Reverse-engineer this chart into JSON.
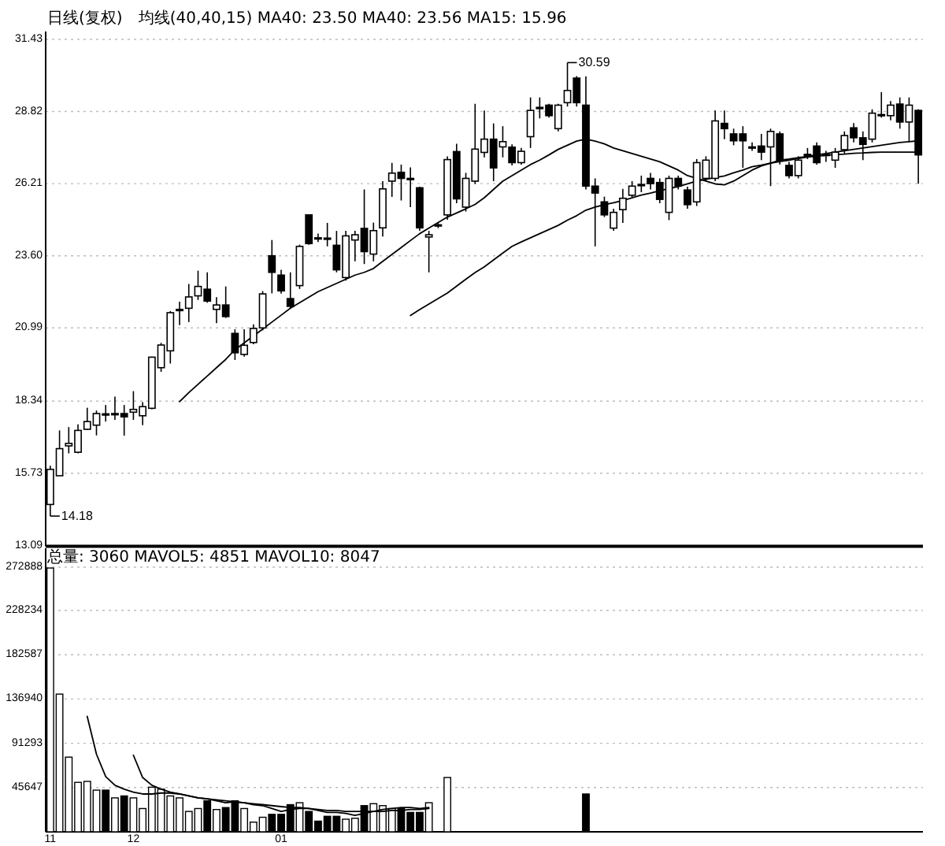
{
  "chart_data": [
    {
      "type": "candlestick",
      "title": "日线(复权)",
      "subtitle": "均线(40,40,15) MA40: 23.50 MA40: 23.56 MA15: 15.96",
      "categories": [
        null,
        null,
        null,
        null,
        null,
        null,
        null,
        null,
        null,
        null,
        null,
        null,
        null,
        null,
        null,
        null,
        null,
        null,
        null,
        null,
        null,
        null,
        null,
        null,
        null,
        null,
        null,
        null,
        null,
        null,
        null,
        null,
        null,
        null,
        null,
        null,
        null,
        null,
        null,
        null,
        null,
        null,
        null,
        null,
        null,
        null,
        null,
        null,
        null,
        null,
        null,
        null,
        null,
        null,
        null,
        null,
        null,
        null,
        null,
        null,
        null,
        null,
        null,
        null,
        null,
        null,
        null,
        null,
        null,
        null,
        null,
        null,
        null,
        null,
        null,
        null,
        null,
        null,
        null,
        null,
        null,
        null,
        null,
        null,
        null,
        null,
        null,
        null,
        null,
        null,
        null,
        null,
        null,
        null,
        null
      ],
      "ohlc": [
        [
          14.6,
          16.0,
          14.18,
          15.87
        ],
        [
          15.64,
          17.28,
          15.64,
          16.62
        ],
        [
          16.72,
          17.4,
          16.45,
          16.81
        ],
        [
          16.49,
          17.5,
          16.45,
          17.28
        ],
        [
          17.32,
          18.1,
          17.3,
          17.6
        ],
        [
          17.47,
          18.0,
          17.1,
          17.89
        ],
        [
          17.88,
          18.2,
          17.6,
          17.85
        ],
        [
          17.87,
          18.5,
          17.66,
          17.89
        ],
        [
          17.89,
          18.2,
          17.09,
          17.77
        ],
        [
          17.94,
          18.7,
          17.66,
          18.04
        ],
        [
          17.81,
          18.3,
          17.47,
          18.14
        ],
        [
          18.08,
          19.95,
          18.05,
          19.93
        ],
        [
          19.55,
          20.45,
          19.4,
          20.37
        ],
        [
          20.16,
          21.6,
          19.7,
          21.54
        ],
        [
          21.62,
          21.94,
          21.09,
          21.66
        ],
        [
          21.7,
          22.58,
          21.2,
          22.11
        ],
        [
          22.15,
          23.06,
          22.0,
          22.49
        ],
        [
          22.39,
          23.0,
          21.9,
          21.96
        ],
        [
          21.66,
          22.1,
          21.16,
          21.82
        ],
        [
          21.82,
          22.49,
          21.35,
          21.4
        ],
        [
          20.79,
          20.94,
          19.83,
          20.09
        ],
        [
          20.03,
          20.94,
          19.95,
          20.36
        ],
        [
          20.46,
          21.12,
          20.4,
          20.97
        ],
        [
          20.99,
          22.32,
          20.9,
          22.22
        ],
        [
          23.6,
          24.17,
          22.24,
          23.0
        ],
        [
          22.9,
          23.09,
          22.23,
          22.33
        ],
        [
          22.05,
          23.0,
          21.7,
          21.77
        ],
        [
          22.52,
          24.0,
          22.4,
          23.94
        ],
        [
          25.08,
          25.1,
          24.0,
          24.04
        ],
        [
          24.25,
          24.4,
          24.1,
          24.22
        ],
        [
          24.24,
          24.79,
          23.94,
          24.2
        ],
        [
          23.98,
          24.5,
          23.0,
          23.09
        ],
        [
          22.81,
          24.5,
          22.7,
          24.32
        ],
        [
          24.17,
          24.5,
          23.4,
          24.36
        ],
        [
          24.59,
          26.0,
          23.3,
          23.75
        ],
        [
          23.66,
          24.8,
          23.4,
          24.51
        ],
        [
          24.61,
          26.3,
          24.3,
          26.02
        ],
        [
          26.3,
          26.96,
          25.73,
          26.59
        ],
        [
          26.62,
          26.9,
          25.6,
          26.4
        ],
        [
          26.4,
          26.8,
          25.36,
          26.38
        ],
        [
          26.06,
          26.1,
          24.5,
          24.61
        ],
        [
          24.28,
          24.5,
          23.0,
          24.36
        ],
        [
          24.7,
          24.8,
          24.6,
          24.72
        ],
        [
          25.08,
          27.2,
          24.9,
          27.08
        ],
        [
          27.37,
          27.65,
          25.5,
          25.66
        ],
        [
          25.36,
          26.6,
          25.2,
          26.4
        ],
        [
          26.3,
          29.1,
          26.2,
          27.46
        ],
        [
          27.34,
          28.86,
          27.16,
          27.82
        ],
        [
          27.82,
          28.39,
          26.3,
          26.78
        ],
        [
          27.54,
          28.29,
          27.16,
          27.73
        ],
        [
          27.53,
          27.63,
          26.87,
          26.97
        ],
        [
          26.97,
          27.5,
          26.9,
          27.38
        ],
        [
          27.91,
          29.33,
          27.5,
          28.86
        ],
        [
          28.95,
          29.33,
          28.57,
          28.97
        ],
        [
          29.05,
          29.1,
          28.6,
          28.67
        ],
        [
          28.2,
          29.1,
          28.1,
          29.05
        ],
        [
          29.14,
          30.59,
          29.0,
          29.58
        ],
        [
          30.03,
          30.1,
          29.0,
          29.14
        ],
        [
          29.05,
          30.09,
          26.0,
          26.12
        ],
        [
          26.12,
          26.4,
          23.94,
          25.87
        ],
        [
          25.55,
          25.74,
          25.0,
          25.08
        ],
        [
          24.6,
          25.3,
          24.5,
          25.17
        ],
        [
          25.27,
          26.02,
          24.79,
          25.68
        ],
        [
          25.79,
          26.3,
          25.7,
          26.12
        ],
        [
          26.18,
          26.5,
          25.9,
          26.17
        ],
        [
          26.4,
          26.6,
          26.0,
          26.21
        ],
        [
          26.25,
          26.4,
          25.5,
          25.64
        ],
        [
          25.17,
          26.5,
          24.89,
          26.4
        ],
        [
          26.4,
          26.5,
          26.0,
          26.12
        ],
        [
          25.98,
          26.1,
          25.3,
          25.45
        ],
        [
          25.55,
          27.1,
          25.4,
          26.97
        ],
        [
          26.4,
          27.2,
          26.3,
          27.06
        ],
        [
          26.4,
          28.86,
          26.3,
          28.48
        ],
        [
          28.39,
          28.86,
          27.82,
          28.2
        ],
        [
          28.01,
          28.2,
          27.6,
          27.76
        ],
        [
          28.01,
          28.29,
          26.78,
          27.76
        ],
        [
          27.54,
          27.7,
          27.4,
          27.52
        ],
        [
          27.57,
          28.01,
          27.06,
          27.35
        ],
        [
          27.54,
          28.2,
          26.12,
          28.1
        ],
        [
          28.01,
          28.1,
          26.9,
          27.06
        ],
        [
          26.87,
          27.0,
          26.4,
          26.5
        ],
        [
          26.5,
          27.2,
          26.4,
          27.06
        ],
        [
          27.25,
          27.5,
          27.1,
          27.27
        ],
        [
          27.57,
          27.7,
          26.9,
          26.97
        ],
        [
          27.27,
          27.4,
          27.0,
          27.25
        ],
        [
          27.06,
          27.5,
          26.78,
          27.35
        ],
        [
          27.44,
          28.1,
          27.3,
          27.95
        ],
        [
          28.23,
          28.4,
          27.7,
          27.87
        ],
        [
          27.87,
          28.1,
          27.06,
          27.63
        ],
        [
          27.82,
          28.9,
          27.7,
          28.76
        ],
        [
          28.68,
          29.52,
          28.6,
          28.71
        ],
        [
          28.67,
          29.2,
          28.5,
          29.05
        ],
        [
          29.09,
          29.33,
          28.2,
          28.44
        ],
        [
          28.44,
          29.33,
          27.72,
          29.05
        ],
        [
          28.86,
          28.9,
          26.21,
          27.25
        ]
      ],
      "color": "#000000",
      "series": [
        {
          "type": "line",
          "color": "#000000",
          "values": [
            null,
            null,
            null,
            null,
            null,
            null,
            null,
            null,
            null,
            null,
            null,
            null,
            null,
            null,
            18.32,
            18.65,
            18.95,
            19.25,
            19.55,
            19.85,
            20.2,
            20.45,
            20.7,
            20.95,
            21.2,
            21.45,
            21.7,
            21.9,
            22.1,
            22.3,
            22.45,
            22.6,
            22.75,
            22.9,
            23.0,
            23.14,
            23.4,
            23.65,
            23.9,
            24.15,
            24.4,
            24.6,
            24.8,
            25.0,
            25.15,
            25.3,
            25.46,
            25.7,
            26.0,
            26.3,
            26.5,
            26.7,
            26.9,
            27.06,
            27.25,
            27.45,
            27.6,
            27.75,
            27.82,
            27.75,
            27.65,
            27.5,
            27.4,
            27.3,
            27.2,
            27.1,
            27.0,
            26.85,
            26.7,
            26.5,
            26.4,
            26.3,
            26.2,
            26.17,
            26.3,
            26.5,
            26.7,
            26.85,
            26.95,
            27.06,
            27.1,
            27.15,
            27.2,
            27.25,
            27.3,
            27.35,
            27.4,
            27.45,
            27.5,
            27.55,
            27.6,
            27.65,
            27.7,
            27.73,
            27.76
          ]
        },
        {
          "type": "line",
          "color": "#000000",
          "values": [
            null,
            null,
            null,
            null,
            null,
            null,
            null,
            null,
            null,
            null,
            null,
            null,
            null,
            null,
            null,
            null,
            null,
            null,
            null,
            null,
            null,
            null,
            null,
            null,
            null,
            null,
            null,
            null,
            null,
            null,
            null,
            null,
            null,
            null,
            null,
            null,
            null,
            null,
            null,
            21.44,
            21.65,
            21.85,
            22.05,
            22.25,
            22.5,
            22.75,
            22.99,
            23.2,
            23.45,
            23.7,
            23.94,
            24.1,
            24.25,
            24.4,
            24.55,
            24.7,
            24.89,
            25.05,
            25.25,
            25.36,
            25.45,
            25.52,
            25.6,
            25.7,
            25.8,
            25.87,
            25.95,
            26.03,
            26.1,
            26.2,
            26.3,
            26.37,
            26.43,
            26.49,
            26.6,
            26.7,
            26.82,
            26.88,
            26.95,
            27.01,
            27.06,
            27.12,
            27.17,
            27.2,
            27.24,
            27.26,
            27.28,
            27.31,
            27.32,
            27.34,
            27.35,
            27.35,
            27.35,
            27.35,
            27.35
          ]
        }
      ],
      "ylim": [
        13.09,
        31.43
      ],
      "yticks": [
        13.09,
        15.73,
        18.34,
        20.99,
        {
          "value": 23.6,
          "label": "23.60"
        },
        26.21,
        28.82,
        31.43
      ],
      "grid": "y",
      "annotations": [
        "30.59",
        "14.18"
      ]
    },
    {
      "type": "bar",
      "title": "总量: 3060 MAVOL5: 4851 MAVOL10: 8047",
      "categories": [
        "11",
        null,
        null,
        null,
        null,
        null,
        null,
        null,
        null,
        "12",
        null,
        null,
        null,
        null,
        null,
        null,
        null,
        null,
        null,
        null,
        null,
        null,
        null,
        null,
        null,
        "01",
        null,
        null,
        null,
        null,
        null,
        null,
        null,
        null,
        null,
        null,
        null,
        null,
        null,
        null,
        null,
        null,
        null,
        null,
        null,
        null,
        null,
        null,
        null,
        null,
        null,
        null,
        null,
        null,
        null,
        null,
        null,
        null,
        null,
        null,
        null,
        null,
        null,
        null,
        null,
        null,
        null,
        null,
        null,
        null,
        null,
        null,
        null,
        null,
        null,
        null,
        null,
        null,
        null,
        null,
        null,
        null,
        null,
        null,
        null,
        null,
        null,
        null,
        null,
        null,
        null,
        null,
        null,
        null,
        null
      ],
      "series": [
        {
          "color": "#000000",
          "colors": [
            "#ffffff",
            "#ffffff",
            "#ffffff",
            "#ffffff",
            "#ffffff",
            "#ffffff",
            "#000000",
            "#ffffff",
            "#000000",
            "#ffffff",
            "#ffffff",
            "#ffffff",
            "#ffffff",
            "#ffffff",
            "#ffffff",
            "#ffffff",
            "#ffffff",
            "#000000",
            "#ffffff",
            "#000000",
            "#000000",
            "#ffffff",
            "#ffffff",
            "#ffffff",
            "#000000",
            "#000000",
            "#000000",
            "#ffffff",
            "#000000",
            "#000000",
            "#000000",
            "#000000",
            "#ffffff",
            "#ffffff",
            "#000000",
            "#ffffff",
            "#ffffff",
            "#ffffff",
            "#000000",
            "#000000",
            "#000000",
            "#ffffff",
            null,
            "#ffffff",
            null,
            null,
            null,
            null,
            null,
            null,
            null,
            null,
            null,
            null,
            null,
            null,
            null,
            null,
            "#000000",
            null,
            null,
            null,
            null,
            null,
            null,
            null,
            null,
            null,
            null,
            null,
            null,
            null,
            null,
            null,
            null,
            null,
            null,
            null,
            null,
            null,
            null,
            null,
            null,
            null,
            null,
            null,
            null,
            null,
            null,
            null,
            null,
            null,
            null,
            null,
            null
          ],
          "values": [
            272000,
            142000,
            77000,
            51000,
            52000,
            43000,
            43000,
            35000,
            37000,
            35000,
            24000,
            46000,
            44000,
            37000,
            35000,
            21000,
            24000,
            32000,
            23000,
            25000,
            32000,
            24000,
            10000,
            15000,
            18000,
            18000,
            28000,
            30000,
            21000,
            11000,
            16000,
            16000,
            13000,
            14000,
            27000,
            29000,
            27000,
            24000,
            24000,
            20000,
            20000,
            30000,
            null,
            56000,
            null,
            null,
            null,
            null,
            null,
            null,
            null,
            null,
            null,
            null,
            null,
            null,
            null,
            null,
            39000,
            null,
            null,
            null,
            null,
            null,
            null,
            null,
            null,
            null,
            null,
            null,
            null,
            null,
            null,
            null,
            null,
            null,
            null,
            null,
            null,
            null,
            null,
            null,
            null,
            null,
            null,
            null,
            null,
            null,
            null,
            null,
            null,
            null,
            null,
            null,
            null
          ]
        },
        {
          "type": "line",
          "color": "#000000",
          "values": [
            null,
            null,
            null,
            null,
            119000,
            80000,
            57000,
            48000,
            44000,
            41000,
            39000,
            39000,
            40000,
            40000,
            39000,
            37000,
            35000,
            34000,
            32000,
            30000,
            31000,
            30000,
            28000,
            27000,
            24000,
            21000,
            23000,
            24000,
            24000,
            22000,
            20000,
            20000,
            19000,
            17000,
            19000,
            21000,
            23000,
            24000,
            25000,
            25000,
            24000,
            25000,
            null,
            null,
            null,
            null,
            null,
            null,
            null,
            null,
            null,
            null,
            null,
            null,
            null,
            null,
            null,
            null,
            null,
            null,
            null,
            null,
            null,
            null,
            null,
            null,
            null,
            null,
            null,
            null,
            null,
            null,
            null,
            null,
            null,
            null,
            null,
            null,
            null,
            null,
            null,
            null,
            null,
            null,
            null,
            null,
            null,
            null,
            null,
            null,
            null,
            null,
            null,
            null,
            null
          ]
        },
        {
          "type": "line",
          "color": "#000000",
          "values": [
            null,
            null,
            null,
            null,
            null,
            null,
            null,
            null,
            null,
            79000,
            56000,
            48000,
            44000,
            41000,
            39000,
            37000,
            35000,
            34000,
            33000,
            32000,
            31000,
            30000,
            29000,
            28000,
            27000,
            26000,
            25000,
            25000,
            24000,
            23000,
            22000,
            22000,
            21000,
            21000,
            21000,
            21000,
            21000,
            22000,
            22000,
            23000,
            23000,
            24000,
            null,
            null,
            null,
            null,
            null,
            null,
            null,
            null,
            null,
            null,
            null,
            null,
            null,
            null,
            null,
            null,
            null,
            null,
            null,
            null,
            null,
            null,
            null,
            null,
            null,
            null,
            null,
            null,
            null,
            null,
            null,
            null,
            null,
            null,
            null,
            null,
            null,
            null,
            null,
            null,
            null,
            null,
            null,
            null,
            null,
            null,
            null,
            null,
            null,
            null,
            null,
            null,
            null
          ]
        }
      ],
      "ylim": [
        0,
        272888
      ],
      "yticks": [
        45647,
        91293,
        136940,
        182587,
        228234,
        272888
      ],
      "grid": "y"
    }
  ]
}
